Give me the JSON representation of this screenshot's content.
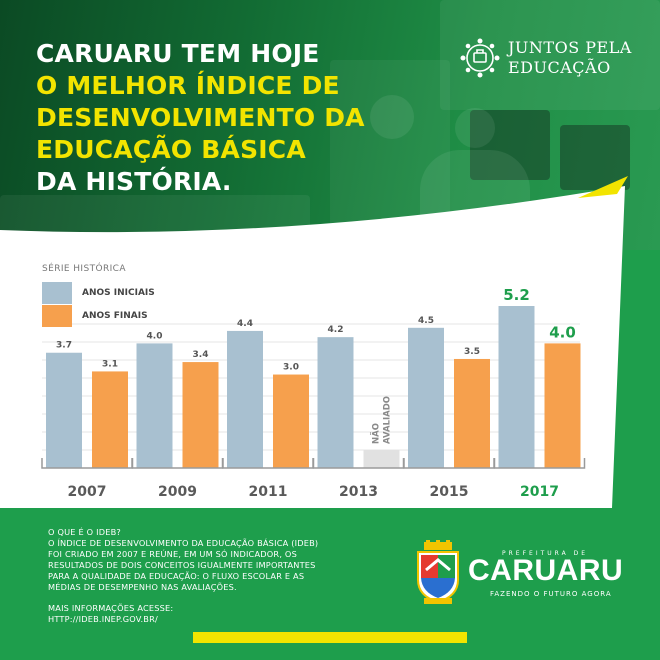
{
  "headline": {
    "lines": [
      {
        "text": "CARUARU TEM HOJE",
        "color": "white"
      },
      {
        "text": "O MELHOR ÍNDICE DE",
        "color": "yellow"
      },
      {
        "text": "DESENVOLVIMENTO DA",
        "color": "yellow"
      },
      {
        "text": "EDUCAÇÃO BÁSICA",
        "color": "yellow"
      },
      {
        "text": "DA HISTÓRIA.",
        "color": "white"
      }
    ]
  },
  "campaign_logo": {
    "line1": "JUNTOS PELA",
    "line2": "EDUCAÇÃO",
    "icon": "people-circle-icon"
  },
  "chart_data": {
    "type": "bar",
    "title": "SÉRIE HISTÓRICA",
    "categories": [
      "2007",
      "2009",
      "2011",
      "2013",
      "2015",
      "2017"
    ],
    "series": [
      {
        "name": "ANOS INICIAIS",
        "color": "#a8c0d0",
        "values": [
          3.7,
          4.0,
          4.4,
          4.2,
          4.5,
          5.2
        ],
        "labels": [
          "3.7",
          "4.0",
          "4.4",
          "4.2",
          "4.5",
          "5.2"
        ]
      },
      {
        "name": "ANOS FINAIS",
        "color": "#f6a04d",
        "values": [
          3.1,
          3.4,
          3.0,
          null,
          3.5,
          4.0
        ],
        "labels": [
          "3.1",
          "3.4",
          "3.0",
          "",
          "3.5",
          "4.0"
        ]
      }
    ],
    "not_evaluated_label": [
      "NÃO",
      "AVALIADO"
    ],
    "highlight_category": "2017",
    "highlight_color": "#1e9e4c",
    "ylim": [
      0,
      5.2
    ],
    "grid": true,
    "legend": "top-left"
  },
  "footer": {
    "question": "O QUE É O IDEB?",
    "description": [
      "O ÍNDICE DE DESENVOLVIMENTO DA EDUCAÇÃO BÁSICA (IDEB)",
      "FOI CRIADO EM 2007 E REÚNE, EM UM SÓ INDICADOR, OS",
      "RESULTADOS DE DOIS CONCEITOS IGUALMENTE IMPORTANTES",
      "PARA A QUALIDADE DA EDUCAÇÃO: O FLUXO ESCOLAR E AS",
      "MÉDIAS DE DESEMPENHO NAS  AVALIAÇÕES."
    ],
    "more_info_label": "MAIS INFORMAÇÕES ACESSE:",
    "more_info_url": "HTTP://IDEB.INEP.GOV.BR/"
  },
  "brand": {
    "prefeitura": "PREFEITURA DE",
    "name": "CARUARU",
    "slogan": "FAZENDO O FUTURO AGORA",
    "icon": "coat-of-arms-icon"
  },
  "colors": {
    "background": "#1e9e4c",
    "headline_yellow": "#f2e400",
    "headline_white": "#ffffff"
  }
}
